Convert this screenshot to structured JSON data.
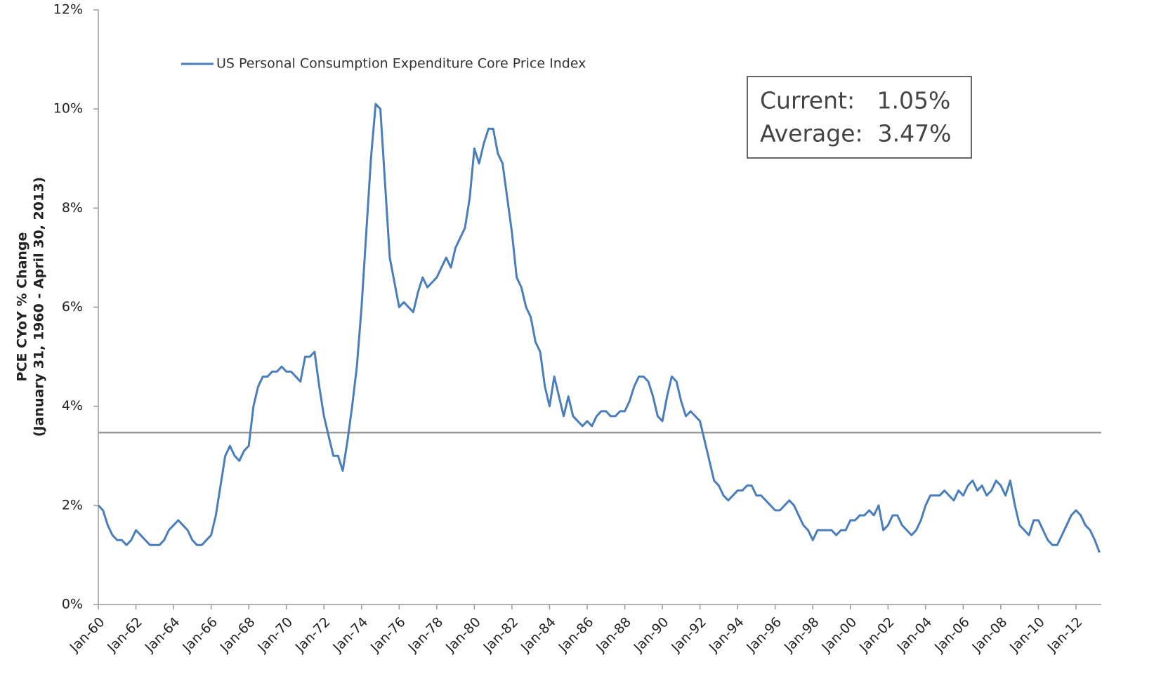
{
  "chart_data": {
    "type": "line",
    "y_label": [
      "PCE CYoY % Change",
      "(January 31, 1960 - April 30, 2013)"
    ],
    "categories": [
      "Jan-60",
      null,
      null,
      null,
      null,
      null,
      null,
      null,
      "Jan-62",
      null,
      null,
      null,
      null,
      null,
      null,
      null,
      "Jan-64",
      null,
      null,
      null,
      null,
      null,
      null,
      null,
      "Jan-66",
      null,
      null,
      null,
      null,
      null,
      null,
      null,
      "Jan-68",
      null,
      null,
      null,
      null,
      null,
      null,
      null,
      "Jan-70",
      null,
      null,
      null,
      null,
      null,
      null,
      null,
      "Jan-72",
      null,
      null,
      null,
      null,
      null,
      null,
      null,
      "Jan-74",
      null,
      null,
      null,
      null,
      null,
      null,
      null,
      "Jan-76",
      null,
      null,
      null,
      null,
      null,
      null,
      null,
      "Jan-78",
      null,
      null,
      null,
      null,
      null,
      null,
      null,
      "Jan-80",
      null,
      null,
      null,
      null,
      null,
      null,
      null,
      "Jan-82",
      null,
      null,
      null,
      null,
      null,
      null,
      null,
      "Jan-84",
      null,
      null,
      null,
      null,
      null,
      null,
      null,
      "Jan-86",
      null,
      null,
      null,
      null,
      null,
      null,
      null,
      "Jan-88",
      null,
      null,
      null,
      null,
      null,
      null,
      null,
      "Jan-90",
      null,
      null,
      null,
      null,
      null,
      null,
      null,
      "Jan-92",
      null,
      null,
      null,
      null,
      null,
      null,
      null,
      "Jan-94",
      null,
      null,
      null,
      null,
      null,
      null,
      null,
      "Jan-96",
      null,
      null,
      null,
      null,
      null,
      null,
      null,
      "Jan-98",
      null,
      null,
      null,
      null,
      null,
      null,
      null,
      "Jan-00",
      null,
      null,
      null,
      null,
      null,
      null,
      null,
      "Jan-02",
      null,
      null,
      null,
      null,
      null,
      null,
      null,
      "Jan-04",
      null,
      null,
      null,
      null,
      null,
      null,
      null,
      "Jan-06",
      null,
      null,
      null,
      null,
      null,
      null,
      null,
      "Jan-08",
      null,
      null,
      null,
      null,
      null,
      null,
      null,
      "Jan-10",
      null,
      null,
      null,
      null,
      null,
      null,
      null,
      "Jan-12",
      null,
      null,
      null,
      null,
      null
    ],
    "series": [
      {
        "name": "US Personal Consumption Expenditure Core Price Index",
        "color": "#4a7ebb",
        "values": [
          2.0,
          1.9,
          1.6,
          1.4,
          1.3,
          1.3,
          1.2,
          1.3,
          1.5,
          1.4,
          1.3,
          1.2,
          1.2,
          1.2,
          1.3,
          1.5,
          1.6,
          1.7,
          1.6,
          1.5,
          1.3,
          1.2,
          1.2,
          1.3,
          1.4,
          1.8,
          2.4,
          3.0,
          3.2,
          3.0,
          2.9,
          3.1,
          3.2,
          4.0,
          4.4,
          4.6,
          4.6,
          4.7,
          4.7,
          4.8,
          4.7,
          4.7,
          4.6,
          4.5,
          5.0,
          5.0,
          5.1,
          4.4,
          3.8,
          3.4,
          3.0,
          3.0,
          2.7,
          3.3,
          4.0,
          4.8,
          6.0,
          7.5,
          9.0,
          10.1,
          10.0,
          8.5,
          7.0,
          6.5,
          6.0,
          6.1,
          6.0,
          5.9,
          6.3,
          6.6,
          6.4,
          6.5,
          6.6,
          6.8,
          7.0,
          6.8,
          7.2,
          7.4,
          7.6,
          8.2,
          9.2,
          8.9,
          9.3,
          9.6,
          9.6,
          9.1,
          8.9,
          8.2,
          7.5,
          6.6,
          6.4,
          6.0,
          5.8,
          5.3,
          5.1,
          4.4,
          4.0,
          4.6,
          4.2,
          3.8,
          4.2,
          3.8,
          3.7,
          3.6,
          3.7,
          3.6,
          3.8,
          3.9,
          3.9,
          3.8,
          3.8,
          3.9,
          3.9,
          4.1,
          4.4,
          4.6,
          4.6,
          4.5,
          4.2,
          3.8,
          3.7,
          4.2,
          4.6,
          4.5,
          4.1,
          3.8,
          3.9,
          3.8,
          3.7,
          3.3,
          2.9,
          2.5,
          2.4,
          2.2,
          2.1,
          2.2,
          2.3,
          2.3,
          2.4,
          2.4,
          2.2,
          2.2,
          2.1,
          2.0,
          1.9,
          1.9,
          2.0,
          2.1,
          2.0,
          1.8,
          1.6,
          1.5,
          1.3,
          1.5,
          1.5,
          1.5,
          1.5,
          1.4,
          1.5,
          1.5,
          1.7,
          1.7,
          1.8,
          1.8,
          1.9,
          1.8,
          2.0,
          1.5,
          1.6,
          1.8,
          1.8,
          1.6,
          1.5,
          1.4,
          1.5,
          1.7,
          2.0,
          2.2,
          2.2,
          2.2,
          2.3,
          2.2,
          2.1,
          2.3,
          2.2,
          2.4,
          2.5,
          2.3,
          2.4,
          2.2,
          2.3,
          2.5,
          2.4,
          2.2,
          2.5,
          2.0,
          1.6,
          1.5,
          1.4,
          1.7,
          1.7,
          1.5,
          1.3,
          1.2,
          1.2,
          1.4,
          1.6,
          1.8,
          1.9,
          1.8,
          1.6,
          1.5,
          1.3,
          1.05
        ]
      }
    ],
    "average_line": {
      "value": 3.47,
      "color": "#999999"
    },
    "annotation": [
      "Current:   1.05%",
      "Average:  3.47%"
    ],
    "ylim": [
      0,
      12
    ],
    "yticks": [
      {
        "value": 0,
        "label": "0%"
      },
      {
        "value": 2,
        "label": "2%"
      },
      {
        "value": 4,
        "label": "4%"
      },
      {
        "value": 6,
        "label": "6%"
      },
      {
        "value": 8,
        "label": "8%"
      },
      {
        "value": 10,
        "label": "10%"
      },
      {
        "value": 12,
        "label": "12%"
      }
    ],
    "grid": false,
    "legend": "top-left"
  }
}
